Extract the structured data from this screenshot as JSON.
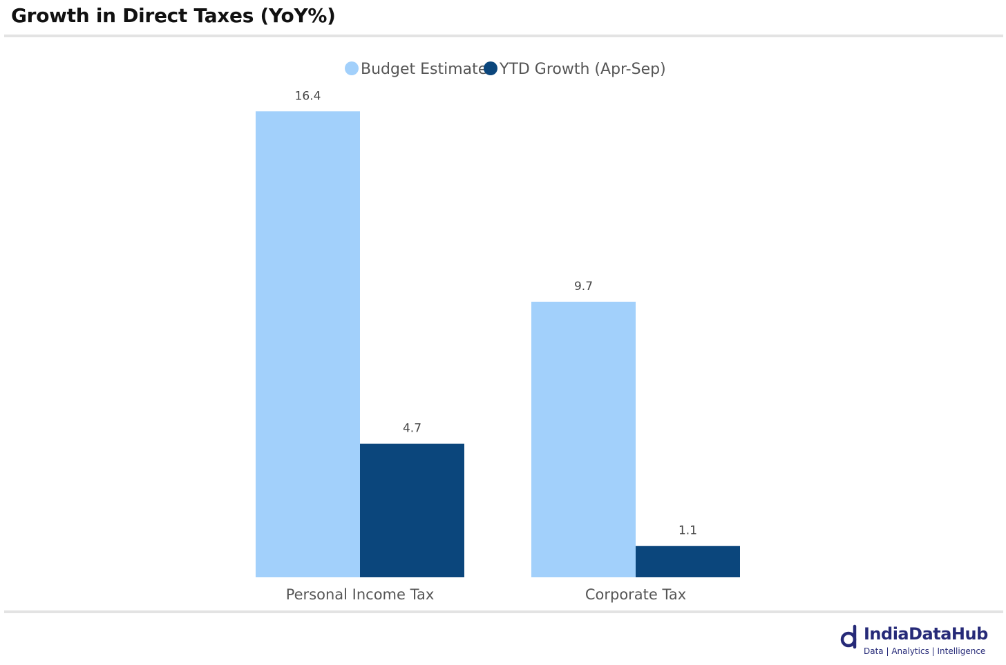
{
  "header": {
    "title": "Growth in Direct Taxes (YoY%)"
  },
  "chart_data": {
    "type": "bar",
    "title": "Growth in Direct Taxes (YoY%)",
    "categories": [
      "Personal Income Tax",
      "Corporate Tax"
    ],
    "series": [
      {
        "name": "Budget Estimate",
        "color": "#a2d0fb",
        "values": [
          16.4,
          9.7
        ]
      },
      {
        "name": "YTD Growth (Apr-Sep)",
        "color": "#0b467c",
        "values": [
          4.7,
          1.1
        ]
      }
    ],
    "xlabel": "",
    "ylabel": "",
    "ylim": [
      0,
      17.5
    ],
    "grid": false,
    "legend": "top-center"
  },
  "branding": {
    "name": "IndiaDataHub",
    "tagline": "Data | Analytics | Intelligence",
    "color": "#262a78"
  }
}
